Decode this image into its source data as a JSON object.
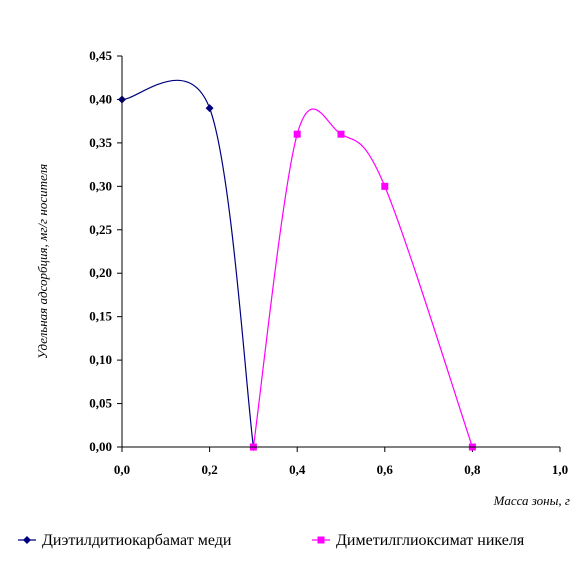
{
  "chart_data": {
    "type": "line",
    "title": "",
    "xlabel": "Масса зоны, г",
    "ylabel": "Удельная адсорбция, мг/г носителя",
    "xlim": [
      0,
      1.0
    ],
    "ylim": [
      0,
      0.45
    ],
    "x_ticks": [
      "0,0",
      "0,2",
      "0,4",
      "0,6",
      "0,8",
      "1,0"
    ],
    "y_ticks": [
      "0,00",
      "0,05",
      "0,10",
      "0,15",
      "0,20",
      "0,25",
      "0,30",
      "0,35",
      "0,40",
      "0,45"
    ],
    "grid": false,
    "legend_position": "bottom",
    "smoothed": true,
    "series": [
      {
        "name": "Диэтилдитиокарбамат меди",
        "color": "#000080",
        "marker": "diamond",
        "x": [
          0.0,
          0.2,
          0.3
        ],
        "y": [
          0.4,
          0.39,
          0.0
        ]
      },
      {
        "name": "Диметилглиоксимат никеля",
        "color": "#FF00FF",
        "marker": "square",
        "x": [
          0.3,
          0.4,
          0.5,
          0.6,
          0.8
        ],
        "y": [
          0.0,
          0.36,
          0.36,
          0.3,
          0.0
        ]
      }
    ]
  }
}
